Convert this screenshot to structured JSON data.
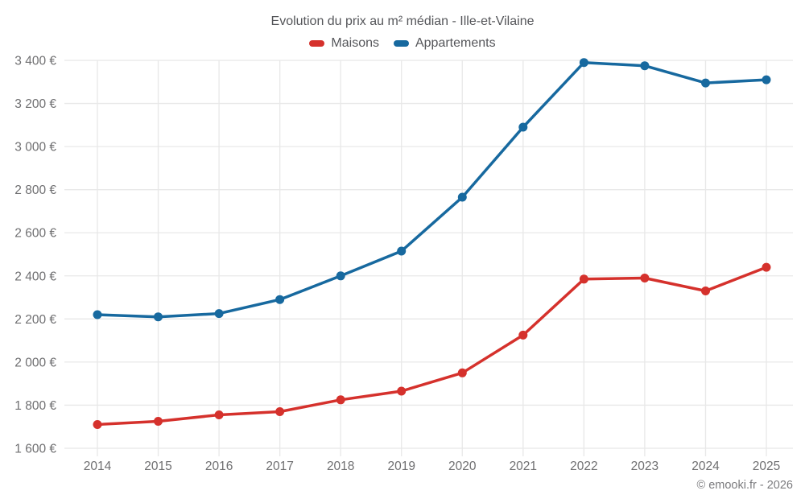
{
  "watermark": "© emooki.fr - 2026",
  "chart_data": {
    "type": "line",
    "title": "Evolution du prix au m² médian - Ille-et-Vilaine",
    "categories": [
      "2014",
      "2015",
      "2016",
      "2017",
      "2018",
      "2019",
      "2020",
      "2021",
      "2022",
      "2023",
      "2024",
      "2025"
    ],
    "series": [
      {
        "name": "Maisons",
        "color": "#d5312c",
        "values": [
          1710,
          1725,
          1755,
          1770,
          1825,
          1865,
          1950,
          2125,
          2385,
          2390,
          2330,
          2440
        ]
      },
      {
        "name": "Appartements",
        "color": "#17699f",
        "values": [
          2220,
          2210,
          2225,
          2290,
          2400,
          2515,
          2765,
          3090,
          3390,
          3375,
          3295,
          3310
        ]
      }
    ],
    "xlabel": "",
    "ylabel": "",
    "ylim": [
      1600,
      3400
    ],
    "ytick_step": 200,
    "ytick_suffix": " €",
    "grid": true,
    "legend_position": "top",
    "marker": "circle",
    "colors": {
      "grid": "#e8e8e8",
      "axis_label": "#6f6f71",
      "title": "#55565a",
      "watermark": "#7b7b7e"
    }
  }
}
